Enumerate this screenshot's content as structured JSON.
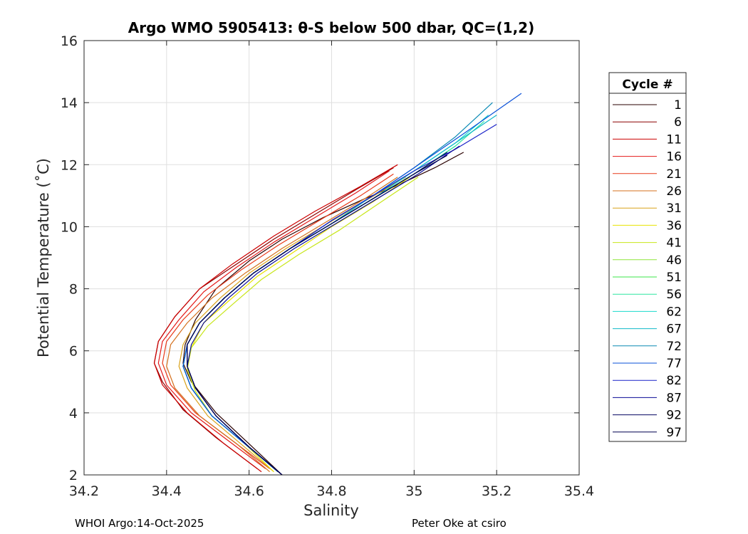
{
  "chart_data": {
    "type": "line",
    "title": "Argo WMO 5905413: θ-S below 500 dbar,  QC=(1,2)",
    "xlabel": "Salinity",
    "ylabel": "Potential Temperature (˚C)",
    "xlim": [
      34.2,
      35.4
    ],
    "ylim": [
      2,
      16
    ],
    "xticks": [
      34.2,
      34.4,
      34.6,
      34.8,
      35,
      35.2,
      35.4
    ],
    "xtick_labels": [
      "34.2",
      "34.4",
      "34.6",
      "34.8",
      "35",
      "35.2",
      "35.4"
    ],
    "yticks": [
      2,
      4,
      6,
      8,
      10,
      12,
      14,
      16
    ],
    "ytick_labels": [
      "2",
      "4",
      "6",
      "8",
      "10",
      "12",
      "14",
      "16"
    ],
    "grid": true,
    "legend": {
      "title": "Cycle #",
      "placement": "outside-right",
      "entries": [
        "1",
        "6",
        "11",
        "16",
        "21",
        "26",
        "31",
        "36",
        "41",
        "46",
        "51",
        "56",
        "62",
        "67",
        "72",
        "77",
        "82",
        "87",
        "92",
        "97"
      ],
      "colors": [
        "#2a0000",
        "#8a0000",
        "#cc0000",
        "#e41a1a",
        "#e83a1a",
        "#d4701e",
        "#d9a21a",
        "#e8e200",
        "#c8e61a",
        "#8ee63a",
        "#3ee64a",
        "#2ee6a0",
        "#1ad9cc",
        "#10b8c8",
        "#0a8ab4",
        "#0a50d8",
        "#1a22c8",
        "#0a0a96",
        "#050560",
        "#000050"
      ]
    },
    "series": [
      {
        "name": "1",
        "s": [
          34.68,
          34.6,
          34.52,
          34.46,
          34.44,
          34.445,
          34.47,
          34.52,
          34.6,
          34.68,
          34.78,
          34.88,
          34.97,
          35.05,
          35.12
        ],
        "t": [
          2.0,
          3.0,
          4.0,
          5.0,
          5.6,
          6.2,
          7.0,
          8.0,
          8.9,
          9.6,
          10.3,
          10.9,
          11.4,
          11.9,
          12.4
        ]
      },
      {
        "name": "6",
        "s": [
          34.62,
          34.52,
          34.44,
          34.39,
          34.37,
          34.38,
          34.42,
          34.48,
          34.57,
          34.66,
          34.76,
          34.86,
          34.95
        ],
        "t": [
          2.2,
          3.2,
          4.1,
          5.0,
          5.6,
          6.3,
          7.1,
          8.0,
          8.8,
          9.6,
          10.4,
          11.2,
          11.9
        ]
      },
      {
        "name": "11",
        "s": [
          34.63,
          34.54,
          34.45,
          34.39,
          34.37,
          34.38,
          34.42,
          34.48,
          34.56,
          34.66,
          34.76,
          34.87,
          34.96
        ],
        "t": [
          2.1,
          3.0,
          4.0,
          4.9,
          5.6,
          6.3,
          7.1,
          8.0,
          8.8,
          9.7,
          10.5,
          11.3,
          12.0
        ]
      },
      {
        "name": "16",
        "s": [
          34.64,
          34.55,
          34.46,
          34.4,
          34.38,
          34.39,
          34.43,
          34.49,
          34.57,
          34.66,
          34.76,
          34.86,
          34.94
        ],
        "t": [
          2.2,
          3.1,
          4.0,
          4.9,
          5.6,
          6.3,
          7.0,
          7.9,
          8.7,
          9.5,
          10.3,
          11.1,
          11.8
        ]
      },
      {
        "name": "21",
        "s": [
          34.65,
          34.56,
          34.47,
          34.41,
          34.39,
          34.4,
          34.44,
          34.5,
          34.58,
          34.67,
          34.77,
          34.87,
          34.95
        ],
        "t": [
          2.2,
          3.1,
          4.0,
          4.9,
          5.6,
          6.3,
          7.0,
          7.8,
          8.6,
          9.4,
          10.2,
          11.0,
          11.7
        ]
      },
      {
        "name": "26",
        "s": [
          34.65,
          34.57,
          34.48,
          34.42,
          34.4,
          34.41,
          34.45,
          34.51,
          34.59,
          34.68,
          34.78,
          34.88,
          34.96
        ],
        "t": [
          2.1,
          3.0,
          3.9,
          4.8,
          5.5,
          6.2,
          6.9,
          7.7,
          8.5,
          9.3,
          10.1,
          10.9,
          11.6
        ]
      },
      {
        "name": "31",
        "s": [
          34.66,
          34.58,
          34.5,
          34.45,
          34.43,
          34.44,
          34.47,
          34.53,
          34.6,
          34.69,
          34.79,
          34.89,
          34.98
        ],
        "t": [
          2.1,
          3.0,
          3.9,
          4.8,
          5.5,
          6.2,
          6.9,
          7.7,
          8.5,
          9.3,
          10.1,
          10.9,
          11.6
        ]
      },
      {
        "name": "36",
        "s": [
          34.66,
          34.59,
          34.51,
          34.47,
          34.45,
          34.46,
          34.49,
          34.55,
          34.62,
          34.71,
          34.8,
          34.9,
          34.99
        ],
        "t": [
          2.1,
          3.0,
          3.9,
          4.7,
          5.4,
          6.1,
          6.9,
          7.6,
          8.4,
          9.2,
          10.0,
          10.8,
          11.6
        ]
      },
      {
        "name": "41",
        "s": [
          34.67,
          34.59,
          34.51,
          34.47,
          34.45,
          34.46,
          34.5,
          34.56,
          34.63,
          34.72,
          34.82,
          34.92,
          35.01
        ],
        "t": [
          2.1,
          3.0,
          3.9,
          4.7,
          5.4,
          6.1,
          6.8,
          7.5,
          8.3,
          9.1,
          9.9,
          10.8,
          11.6
        ]
      },
      {
        "name": "46",
        "s": [
          34.67,
          34.59,
          34.51,
          34.46,
          34.44,
          34.45,
          34.48,
          34.54,
          34.61,
          34.7,
          34.8,
          34.9,
          35.0,
          35.08
        ],
        "t": [
          2.1,
          3.0,
          3.9,
          4.8,
          5.5,
          6.2,
          6.9,
          7.7,
          8.5,
          9.3,
          10.1,
          10.9,
          11.7,
          12.4
        ]
      },
      {
        "name": "51",
        "s": [
          34.67,
          34.59,
          34.51,
          34.46,
          34.44,
          34.45,
          34.48,
          34.54,
          34.61,
          34.7,
          34.8,
          34.9,
          35.0,
          35.1
        ],
        "t": [
          2.1,
          3.0,
          3.9,
          4.8,
          5.5,
          6.2,
          6.9,
          7.7,
          8.5,
          9.3,
          10.1,
          10.9,
          11.7,
          12.6
        ]
      },
      {
        "name": "56",
        "s": [
          34.67,
          34.59,
          34.51,
          34.46,
          34.44,
          34.45,
          34.48,
          34.54,
          34.61,
          34.7,
          34.8,
          34.9,
          35.0,
          35.1,
          35.17
        ],
        "t": [
          2.1,
          3.0,
          3.9,
          4.8,
          5.5,
          6.2,
          6.9,
          7.7,
          8.5,
          9.3,
          10.1,
          10.9,
          11.7,
          12.6,
          13.4
        ]
      },
      {
        "name": "62",
        "s": [
          34.67,
          34.59,
          34.51,
          34.46,
          34.44,
          34.45,
          34.48,
          34.54,
          34.61,
          34.7,
          34.8,
          34.9,
          35.0,
          35.1,
          35.18
        ],
        "t": [
          2.1,
          3.0,
          3.9,
          4.8,
          5.5,
          6.2,
          6.9,
          7.7,
          8.5,
          9.3,
          10.1,
          10.9,
          11.8,
          12.7,
          13.6
        ]
      },
      {
        "name": "67",
        "s": [
          34.67,
          34.59,
          34.51,
          34.46,
          34.44,
          34.45,
          34.48,
          34.54,
          34.61,
          34.7,
          34.8,
          34.9,
          35.0,
          35.1,
          35.2
        ],
        "t": [
          2.1,
          3.0,
          3.9,
          4.8,
          5.5,
          6.2,
          6.9,
          7.7,
          8.5,
          9.3,
          10.1,
          11.0,
          11.8,
          12.7,
          13.6
        ]
      },
      {
        "name": "72",
        "s": [
          34.67,
          34.59,
          34.51,
          34.46,
          34.44,
          34.45,
          34.48,
          34.54,
          34.61,
          34.7,
          34.8,
          34.9,
          35.0,
          35.1,
          35.19
        ],
        "t": [
          2.1,
          3.0,
          3.9,
          4.8,
          5.5,
          6.2,
          6.9,
          7.7,
          8.5,
          9.3,
          10.2,
          11.0,
          11.9,
          12.9,
          14.0
        ]
      },
      {
        "name": "77",
        "s": [
          34.67,
          34.59,
          34.51,
          34.46,
          34.44,
          34.45,
          34.48,
          34.54,
          34.61,
          34.7,
          34.8,
          34.9,
          35.0,
          35.12,
          35.26
        ],
        "t": [
          2.1,
          3.0,
          3.9,
          4.8,
          5.5,
          6.2,
          6.9,
          7.7,
          8.5,
          9.3,
          10.2,
          11.0,
          11.9,
          13.0,
          14.3
        ]
      },
      {
        "name": "82",
        "s": [
          34.68,
          34.6,
          34.52,
          34.47,
          34.45,
          34.45,
          34.48,
          34.54,
          34.61,
          34.7,
          34.8,
          34.9,
          35.0,
          35.1,
          35.2
        ],
        "t": [
          2.0,
          2.9,
          3.9,
          4.8,
          5.5,
          6.2,
          6.9,
          7.7,
          8.5,
          9.3,
          10.2,
          11.0,
          11.8,
          12.5,
          13.3
        ]
      },
      {
        "name": "87",
        "s": [
          34.68,
          34.6,
          34.52,
          34.47,
          34.45,
          34.46,
          34.49,
          34.55,
          34.62,
          34.71,
          34.81,
          34.91,
          35.01,
          35.11
        ],
        "t": [
          2.0,
          2.9,
          3.9,
          4.8,
          5.5,
          6.2,
          6.9,
          7.7,
          8.5,
          9.3,
          10.1,
          10.9,
          11.7,
          12.6
        ]
      },
      {
        "name": "92",
        "s": [
          34.68,
          34.6,
          34.52,
          34.47,
          34.45,
          34.45,
          34.48,
          34.54,
          34.61,
          34.7,
          34.8,
          34.9,
          35.0,
          35.08
        ],
        "t": [
          2.0,
          2.9,
          3.9,
          4.8,
          5.5,
          6.2,
          6.9,
          7.7,
          8.5,
          9.3,
          10.1,
          10.9,
          11.7,
          12.4
        ]
      },
      {
        "name": "97",
        "s": [
          34.68,
          34.6,
          34.52,
          34.47,
          34.45,
          34.45,
          34.48,
          34.54,
          34.61,
          34.7,
          34.8,
          34.9,
          35.0,
          35.08
        ],
        "t": [
          2.0,
          2.9,
          3.9,
          4.8,
          5.5,
          6.2,
          6.9,
          7.7,
          8.5,
          9.3,
          10.1,
          10.9,
          11.7,
          12.3
        ]
      }
    ]
  },
  "footer": {
    "left": "WHOI Argo:14-Oct-2025",
    "right": "Peter Oke at csiro"
  }
}
